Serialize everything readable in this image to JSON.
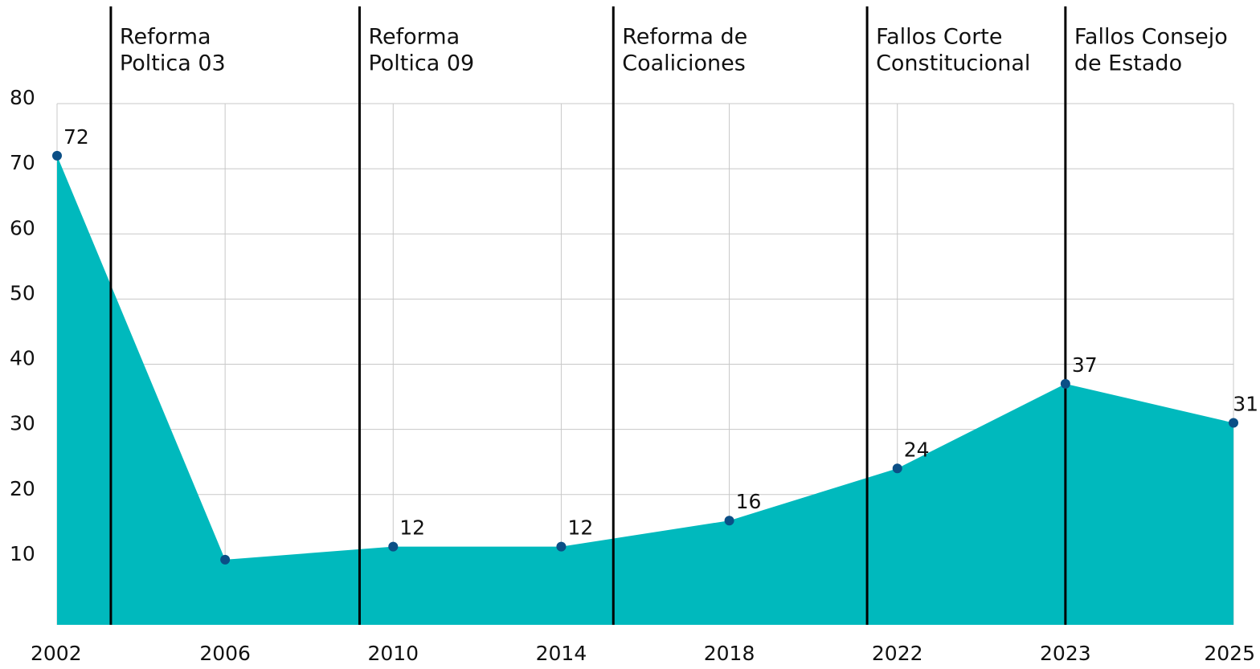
{
  "chart_data": {
    "type": "area",
    "categories": [
      "2002",
      "2006",
      "2010",
      "2014",
      "2018",
      "2022",
      "2023",
      "2025"
    ],
    "values": [
      72,
      10,
      12,
      12,
      16,
      24,
      37,
      31
    ],
    "value_labels": [
      "72",
      null,
      "12",
      "12",
      "16",
      "24",
      "37",
      "31"
    ],
    "color": "#00b9bd",
    "point_color": "#0b4f86",
    "ylim": [
      0,
      80
    ],
    "yticks": [
      10,
      20,
      30,
      40,
      50,
      60,
      70,
      80
    ],
    "grid": true,
    "annotations": [
      {
        "lines": [
          "Reforma",
          "Poltica 03"
        ]
      },
      {
        "lines": [
          "Reforma",
          "Poltica 09"
        ]
      },
      {
        "lines": [
          "Reforma de",
          "Coaliciones"
        ]
      },
      {
        "lines": [
          "Fallos Corte",
          "Constitucional"
        ]
      },
      {
        "lines": [
          "Fallos Consejo",
          "de Estado"
        ]
      }
    ]
  }
}
